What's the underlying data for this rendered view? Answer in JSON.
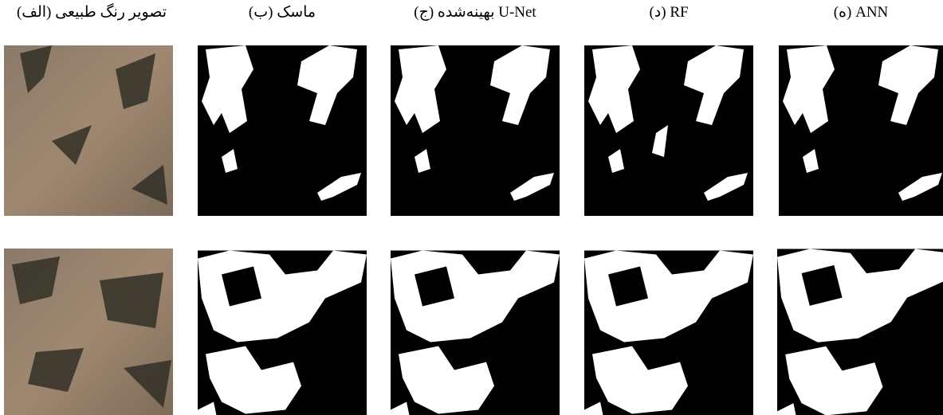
{
  "columns": [
    {
      "header": "تصویر رنگ طبیعی (الف)"
    },
    {
      "header": "ماسک (ب)"
    },
    {
      "header": "U-Net بهینه‌شده (ج)"
    },
    {
      "header": "RF (د)"
    },
    {
      "header": "ANN (ه)"
    }
  ]
}
